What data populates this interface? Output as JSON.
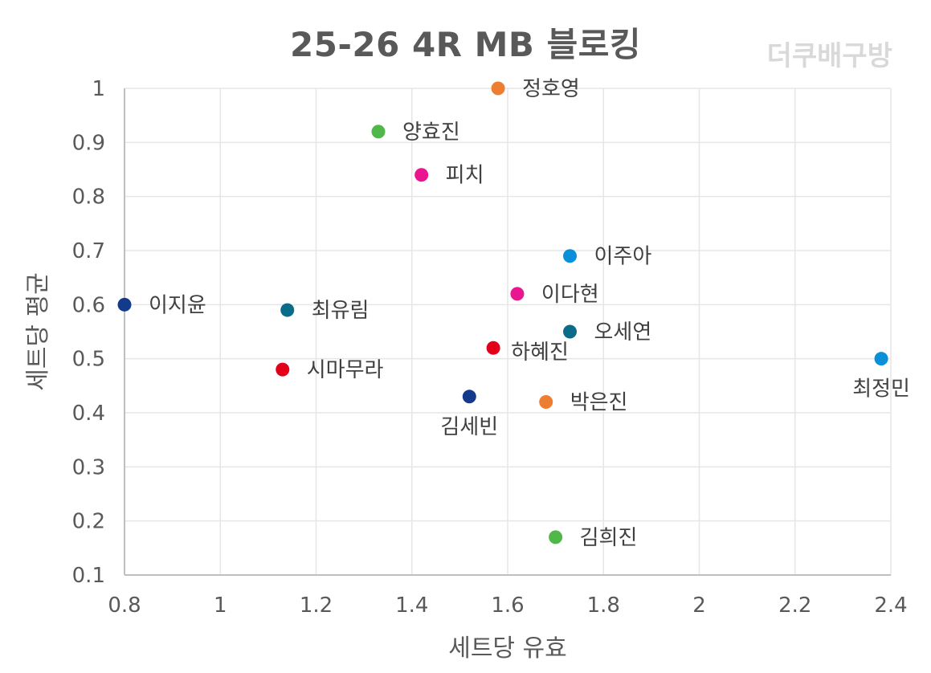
{
  "header": {
    "title": "25-26  4R MB 블로킹",
    "watermark": "더쿠배구방"
  },
  "colors": {
    "grid": "#e6e6e6",
    "axis": "#bfbfbf",
    "text": "#595959",
    "label": "#404040"
  },
  "chart_data": {
    "type": "scatter",
    "title": "25-26  4R MB 블로킹",
    "xlabel": "세트당 유효",
    "ylabel": "세트당 평균",
    "xlim": [
      0.8,
      2.4
    ],
    "ylim": [
      0.1,
      1.0
    ],
    "x_ticks": [
      0.8,
      1,
      1.2,
      1.4,
      1.6,
      1.8,
      2,
      2.2,
      2.4
    ],
    "x_tick_labels": [
      "0.8",
      "1",
      "1.2",
      "1.4",
      "1.6",
      "1.8",
      "2",
      "2.2",
      "2.4"
    ],
    "y_ticks": [
      0.1,
      0.2,
      0.3,
      0.4,
      0.5,
      0.6,
      0.7,
      0.8,
      0.9,
      1.0
    ],
    "y_tick_labels": [
      "0.1",
      "0.2",
      "0.3",
      "0.4",
      "0.5",
      "0.6",
      "0.7",
      "0.8",
      "0.9",
      "1"
    ],
    "grid": true,
    "points": [
      {
        "name": "정호영",
        "x": 1.58,
        "y": 1.0,
        "color": "#ed7d31",
        "label_pos": "right"
      },
      {
        "name": "양효진",
        "x": 1.33,
        "y": 0.92,
        "color": "#4fb848",
        "label_pos": "right"
      },
      {
        "name": "피치",
        "x": 1.42,
        "y": 0.84,
        "color": "#ea1690",
        "label_pos": "right"
      },
      {
        "name": "이주아",
        "x": 1.73,
        "y": 0.69,
        "color": "#0a90d8",
        "label_pos": "right"
      },
      {
        "name": "이지윤",
        "x": 0.8,
        "y": 0.6,
        "color": "#143a8c",
        "label_pos": "right"
      },
      {
        "name": "최유림",
        "x": 1.14,
        "y": 0.59,
        "color": "#0b6c8a",
        "label_pos": "right"
      },
      {
        "name": "이다현",
        "x": 1.62,
        "y": 0.62,
        "color": "#ea1690",
        "label_pos": "right"
      },
      {
        "name": "오세연",
        "x": 1.73,
        "y": 0.55,
        "color": "#0b6c8a",
        "label_pos": "right"
      },
      {
        "name": "하혜진",
        "x": 1.57,
        "y": 0.52,
        "color": "#e2001a",
        "label_pos": "right-below"
      },
      {
        "name": "시마무라",
        "x": 1.13,
        "y": 0.48,
        "color": "#e2001a",
        "label_pos": "right"
      },
      {
        "name": "최정민",
        "x": 2.38,
        "y": 0.5,
        "color": "#0a90d8",
        "label_pos": "below"
      },
      {
        "name": "김세빈",
        "x": 1.52,
        "y": 0.43,
        "color": "#143a8c",
        "label_pos": "below"
      },
      {
        "name": "박은진",
        "x": 1.68,
        "y": 0.42,
        "color": "#ed7d31",
        "label_pos": "right"
      },
      {
        "name": "김희진",
        "x": 1.7,
        "y": 0.17,
        "color": "#4fb848",
        "label_pos": "right"
      }
    ]
  }
}
